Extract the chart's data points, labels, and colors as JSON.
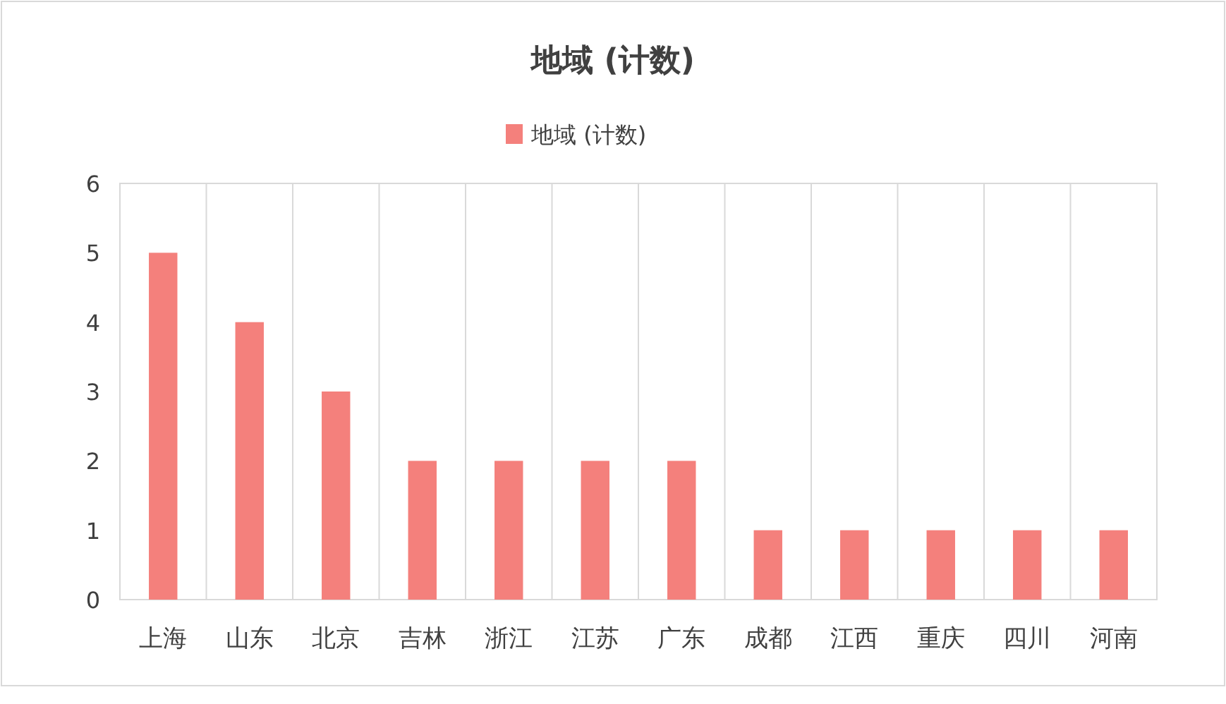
{
  "chart_data": {
    "type": "bar",
    "title": "地域 (计数)",
    "categories": [
      "上海",
      "山东",
      "北京",
      "吉林",
      "浙江",
      "江苏",
      "广东",
      "成都",
      "江西",
      "重庆",
      "四川",
      "河南"
    ],
    "series": [
      {
        "name": "地域 (计数)",
        "color": "#f4807c",
        "values": [
          5,
          4,
          3,
          2,
          2,
          2,
          2,
          1,
          1,
          1,
          1,
          1
        ]
      }
    ],
    "ylim": [
      0,
      6
    ],
    "yticks": [
      0,
      1,
      2,
      3,
      4,
      5,
      6
    ],
    "grid": "x",
    "legend": "top"
  }
}
